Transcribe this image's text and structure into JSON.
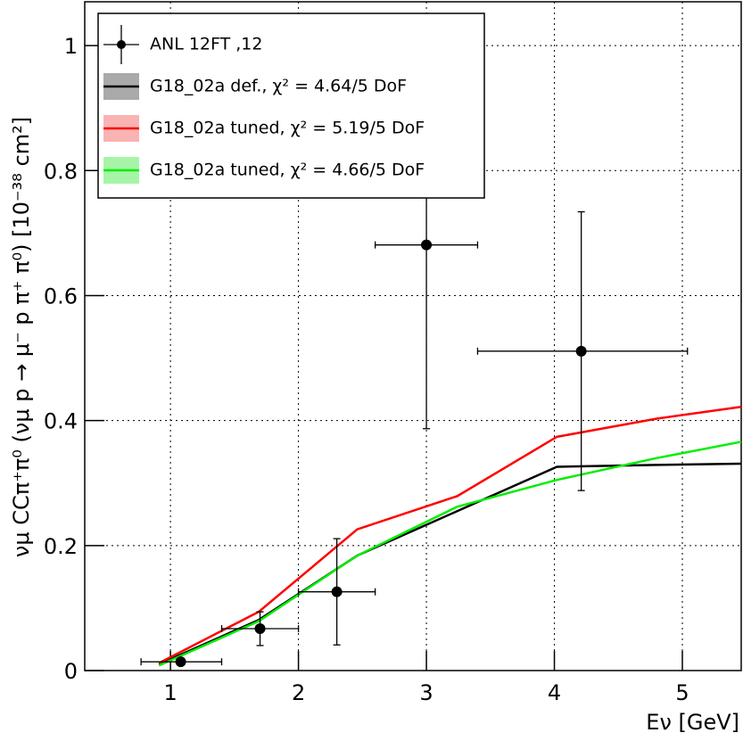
{
  "chart_data": {
    "type": "line",
    "x_label": "Eν [GeV]",
    "y_label": "νμ CCπ⁺π⁰ (νμ p → μ⁻ p π⁺ π⁰) [10⁻³⁸ cm²]",
    "xlim": [
      0.33,
      5.46
    ],
    "ylim": [
      0,
      1.07
    ],
    "xticks": [
      1,
      2,
      3,
      4,
      5
    ],
    "yticks": [
      0,
      0.2,
      0.4,
      0.6,
      0.8,
      1
    ],
    "grid": true,
    "legend": "upper left",
    "x": [
      0.91,
      1.69,
      2.46,
      3.24,
      4.02,
      4.8,
      5.46
    ],
    "series": [
      {
        "name": "G18_02a def., χ² = 4.64/5 DoF",
        "color": "#000000",
        "band_color": "#aaaaaa",
        "values": [
          0.01,
          0.081,
          0.184,
          0.255,
          0.326,
          0.329,
          0.331
        ]
      },
      {
        "name": "G18_02a tuned, χ² = 5.19/5 DoF",
        "color": "#ff0000",
        "band_color": "#f9b3b3",
        "values": [
          0.012,
          0.094,
          0.226,
          0.279,
          0.374,
          0.403,
          0.422
        ]
      },
      {
        "name": "G18_02a tuned, χ² = 4.66/5 DoF",
        "color": "#00ee00",
        "band_color": "#a6f5a6",
        "values": [
          0.008,
          0.079,
          0.184,
          0.262,
          0.305,
          0.34,
          0.366
        ]
      }
    ],
    "measurement": {
      "name": "ANL 12FT ,12",
      "color": "#000000",
      "x": [
        1.08,
        1.7,
        2.3,
        3.0,
        4.21
      ],
      "x_low": [
        0.77,
        1.4,
        2.0,
        2.6,
        3.4
      ],
      "x_high": [
        1.4,
        2.0,
        2.6,
        3.4,
        5.04
      ],
      "values": [
        0.014,
        0.067,
        0.126,
        0.681,
        0.511
      ],
      "errors": [
        0.005,
        0.027,
        0.085,
        0.294,
        0.223
      ]
    }
  }
}
